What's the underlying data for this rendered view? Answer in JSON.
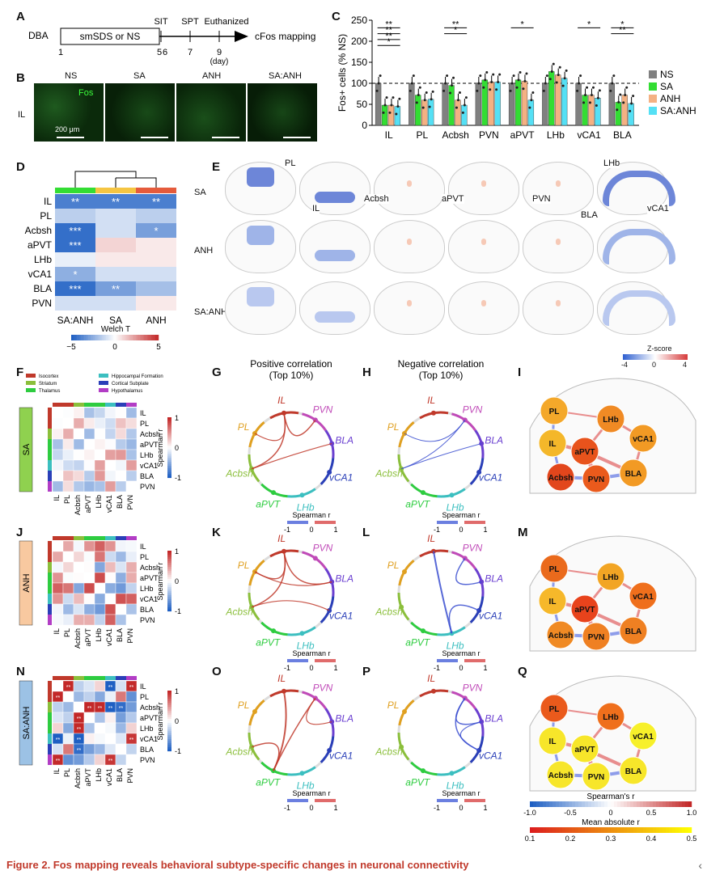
{
  "panels": [
    "A",
    "B",
    "C",
    "D",
    "E",
    "F",
    "G",
    "H",
    "I",
    "J",
    "K",
    "L",
    "M",
    "N",
    "O",
    "P",
    "Q"
  ],
  "panelA": {
    "strain": "DBA",
    "box_label": "smSDS or NS",
    "events": [
      "SIT",
      "SPT",
      "Euthanized"
    ],
    "days": [
      "1",
      "5",
      "6",
      "7",
      "9"
    ],
    "day_unit": "(day)",
    "outcome": "cFos mapping"
  },
  "panelB": {
    "groups": [
      "NS",
      "SA",
      "ANH",
      "SA:ANH"
    ],
    "region": "IL",
    "stain": "Fos",
    "scale": "200 μm"
  },
  "chart_data": {
    "type": "bar",
    "ylabel": "Fos+ cells (% NS)",
    "ylim": [
      0,
      250
    ],
    "yticks": [
      "0",
      "50",
      "100",
      "150",
      "200",
      "250"
    ],
    "categories": [
      "IL",
      "PL",
      "Acbsh",
      "PVN",
      "aPVT",
      "LHb",
      "vCA1",
      "BLA"
    ],
    "series": [
      {
        "name": "NS",
        "color": "#808080",
        "values": [
          100,
          100,
          100,
          100,
          100,
          100,
          100,
          100
        ]
      },
      {
        "name": "SA",
        "color": "#33dd33",
        "values": [
          48,
          72,
          95,
          108,
          108,
          128,
          72,
          55
        ]
      },
      {
        "name": "ANH",
        "color": "#f4b183",
        "values": [
          48,
          60,
          60,
          103,
          105,
          120,
          72,
          72
        ]
      },
      {
        "name": "SA:ANH",
        "color": "#55e0f5",
        "values": [
          45,
          62,
          48,
          103,
          60,
          112,
          65,
          52
        ]
      }
    ],
    "reference_line": 100,
    "significance": [
      "**",
      "**",
      "**",
      "**",
      "*",
      "*",
      "*",
      "*",
      "**",
      "*"
    ]
  },
  "panelD": {
    "rows": [
      "IL",
      "PL",
      "Acbsh",
      "aPVT",
      "LHb",
      "vCA1",
      "BLA",
      "PVN"
    ],
    "cols": [
      "SA:ANH",
      "SA",
      "ANH"
    ],
    "stars": [
      [
        "**",
        "**",
        "**"
      ],
      [
        "",
        "",
        ""
      ],
      [
        "***",
        "",
        "*"
      ],
      [
        "***",
        "",
        ""
      ],
      [
        "",
        "",
        ""
      ],
      [
        "*",
        "",
        ""
      ],
      [
        "***",
        "**",
        ""
      ],
      [
        "",
        "",
        ""
      ]
    ],
    "values": [
      [
        -4,
        -4,
        -4
      ],
      [
        -1.5,
        -1,
        -1.5
      ],
      [
        -4.5,
        -1,
        -3
      ],
      [
        -4.5,
        1,
        0.5
      ],
      [
        -0.5,
        0.5,
        0.5
      ],
      [
        -2.5,
        -1,
        -1
      ],
      [
        -4.5,
        -3,
        -2
      ],
      [
        -1,
        -1,
        0.5
      ]
    ],
    "legend_title": "Welch T",
    "legend_ticks": [
      "−5",
      "0",
      "5"
    ]
  },
  "panelE": {
    "rows": [
      "SA",
      "ANH",
      "SA:ANH"
    ],
    "labels": [
      "PL",
      "IL",
      "Acbsh",
      "aPVT",
      "PVN",
      "BLA",
      "LHb",
      "vCA1"
    ],
    "legend_title": "Z-score",
    "legend_ticks": [
      "-4",
      "0",
      "4"
    ]
  },
  "matrices": {
    "labels": [
      "IL",
      "PL",
      "Acbsh",
      "aPVT",
      "LHb",
      "vCA1",
      "BLA",
      "PVN"
    ],
    "categories": [
      "Isocortex",
      "Striatum",
      "Thalamus",
      "Hippocampal Formation",
      "Cortical Subplate",
      "Hypothalamus"
    ],
    "category_colors": [
      "#c0392b",
      "#8bbf3b",
      "#2ecc40",
      "#3cbfc0",
      "#2a3fb8",
      "#b23dc5"
    ],
    "row_labels": [
      "SA",
      "ANH",
      "SA:ANH"
    ],
    "row_colors": [
      "#8fd14f",
      "#f8c9a0",
      "#9cc2e5"
    ],
    "cbar_label": "Spearman r",
    "cbar_ticks": [
      "1",
      "0",
      "-1"
    ]
  },
  "chords": {
    "title_pos": "Positive correlation",
    "title_pos_sub": "(Top 10%)",
    "title_neg": "Negative correlation",
    "title_neg_sub": "(Top 10%)",
    "nodes": [
      "IL",
      "PVN",
      "BLA",
      "vCA1",
      "LHb",
      "aPVT",
      "Acbsh",
      "PL"
    ],
    "legend_title": "Spearman r",
    "legend_ticks": [
      "-1",
      "0",
      "1"
    ]
  },
  "networks": {
    "nodes": [
      "PL",
      "LHb",
      "IL",
      "aPVT",
      "vCA1",
      "Acbsh",
      "PVN",
      "BLA"
    ],
    "legend1_title": "Spearman's r",
    "legend1_ticks": [
      "-1.0",
      "-0.5",
      "0",
      "0.5",
      "1.0"
    ],
    "legend2_title": "Mean absolute r",
    "legend2_ticks": [
      "0.1",
      "0.2",
      "0.3",
      "0.4",
      "0.5"
    ]
  },
  "caption": "Figure 2. Fos mapping reveals behavioral subtype-specific changes in neuronal connectivity"
}
